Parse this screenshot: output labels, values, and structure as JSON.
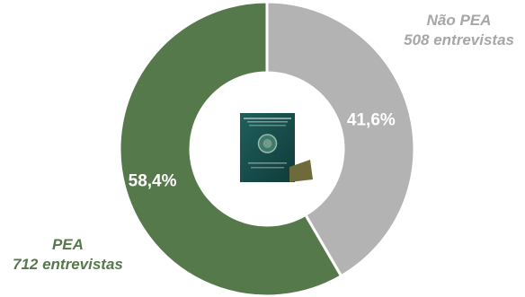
{
  "chart_data": {
    "type": "pie",
    "slices": [
      {
        "name": "Não PEA",
        "count_label": "508 entrevistas",
        "value": 41.6,
        "value_label": "41,6%",
        "color": "#b3b3b3",
        "label_color": "#a6a6a6"
      },
      {
        "name": "PEA",
        "count_label": "712 entrevistas",
        "value": 58.4,
        "value_label": "58,4%",
        "color": "#55794a",
        "label_color": "#55794a"
      }
    ],
    "center_image": "work-card-booklet"
  }
}
